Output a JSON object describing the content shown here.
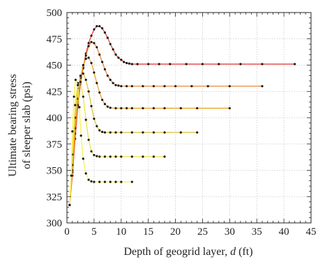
{
  "chart_data": {
    "type": "line",
    "title": "",
    "xlabel_prefix": "Depth of geogrid layer, ",
    "xlabel_var": "d",
    "xlabel_unit": " (ft)",
    "ylabel_line1": "Ultimate bearing stress",
    "ylabel_line2": "of sleeper slab (psi)",
    "xlim": [
      0,
      45
    ],
    "ylim": [
      300,
      500
    ],
    "xticks": [
      0,
      5,
      10,
      15,
      20,
      25,
      30,
      35,
      40,
      45
    ],
    "yticks": [
      300,
      325,
      350,
      375,
      400,
      425,
      450,
      475,
      500
    ],
    "grid": true,
    "legend": "none",
    "series": [
      {
        "color": "#e8322a",
        "points": [
          [
            0.5,
            317
          ],
          [
            1,
            345
          ],
          [
            1.5,
            380
          ],
          [
            2,
            410
          ],
          [
            2.5,
            432
          ],
          [
            3,
            448
          ],
          [
            3.5,
            461
          ],
          [
            4,
            471
          ],
          [
            4.5,
            478
          ],
          [
            5,
            484
          ],
          [
            5.5,
            487
          ],
          [
            6,
            487
          ],
          [
            6.5,
            485
          ],
          [
            7,
            481
          ],
          [
            7.5,
            476
          ],
          [
            8,
            470
          ],
          [
            8.5,
            465
          ],
          [
            9,
            460
          ],
          [
            9.5,
            457
          ],
          [
            10,
            455
          ],
          [
            10.5,
            453
          ],
          [
            11,
            452
          ],
          [
            11.5,
            451.5
          ],
          [
            12,
            451
          ],
          [
            13,
            451
          ],
          [
            15,
            451
          ],
          [
            17,
            451
          ],
          [
            19,
            451
          ],
          [
            22,
            451
          ],
          [
            25,
            451
          ],
          [
            28,
            451
          ],
          [
            32,
            451
          ],
          [
            36,
            451
          ],
          [
            42,
            451
          ]
        ]
      },
      {
        "color": "#ee7a1e",
        "points": [
          [
            0.5,
            317
          ],
          [
            1,
            348
          ],
          [
            1.5,
            385
          ],
          [
            2,
            412
          ],
          [
            2.5,
            432
          ],
          [
            3,
            447
          ],
          [
            3.5,
            459
          ],
          [
            4,
            468
          ],
          [
            4.5,
            472
          ],
          [
            5,
            471
          ],
          [
            5.5,
            467
          ],
          [
            6,
            460
          ],
          [
            6.5,
            453
          ],
          [
            7,
            446
          ],
          [
            7.5,
            440
          ],
          [
            8,
            436
          ],
          [
            8.5,
            433
          ],
          [
            9,
            431
          ],
          [
            9.5,
            430.5
          ],
          [
            10,
            430
          ],
          [
            11,
            430
          ],
          [
            12,
            430
          ],
          [
            14,
            430
          ],
          [
            16,
            430
          ],
          [
            18,
            430
          ],
          [
            20,
            430
          ],
          [
            23,
            430
          ],
          [
            26,
            430
          ],
          [
            30,
            430
          ],
          [
            36,
            430
          ]
        ]
      },
      {
        "color": "#e8a020",
        "points": [
          [
            0.5,
            317
          ],
          [
            1,
            350
          ],
          [
            1.5,
            390
          ],
          [
            2,
            418
          ],
          [
            2.5,
            438
          ],
          [
            3,
            450
          ],
          [
            3.5,
            456
          ],
          [
            4,
            457
          ],
          [
            4.5,
            452
          ],
          [
            5,
            443
          ],
          [
            5.5,
            433
          ],
          [
            6,
            424
          ],
          [
            6.5,
            417
          ],
          [
            7,
            413
          ],
          [
            7.5,
            410.5
          ],
          [
            8,
            409.5
          ],
          [
            9,
            409
          ],
          [
            10,
            409
          ],
          [
            11,
            409
          ],
          [
            12,
            409
          ],
          [
            14,
            409
          ],
          [
            16,
            409
          ],
          [
            18,
            409
          ],
          [
            21,
            409
          ],
          [
            24,
            409
          ],
          [
            30,
            409
          ]
        ]
      },
      {
        "color": "#d8c030",
        "points": [
          [
            0.5,
            317
          ],
          [
            1,
            355
          ],
          [
            1.5,
            400
          ],
          [
            2,
            428
          ],
          [
            2.5,
            440
          ],
          [
            3,
            442
          ],
          [
            3.5,
            436
          ],
          [
            4,
            425
          ],
          [
            4.5,
            411
          ],
          [
            5,
            399
          ],
          [
            5.5,
            392
          ],
          [
            6,
            388
          ],
          [
            6.5,
            386.5
          ],
          [
            7,
            386
          ],
          [
            8,
            386
          ],
          [
            9,
            386
          ],
          [
            10,
            386
          ],
          [
            12,
            386
          ],
          [
            14,
            386
          ],
          [
            16,
            386
          ],
          [
            18,
            386
          ],
          [
            21,
            386
          ],
          [
            24,
            386
          ]
        ]
      },
      {
        "color": "#ece040",
        "points": [
          [
            0.5,
            317
          ],
          [
            1,
            365
          ],
          [
            1.5,
            412
          ],
          [
            2,
            433
          ],
          [
            2.5,
            434
          ],
          [
            3,
            420
          ],
          [
            3.5,
            398
          ],
          [
            4,
            379
          ],
          [
            4.5,
            368
          ],
          [
            5,
            364.5
          ],
          [
            5.5,
            363.5
          ],
          [
            6,
            363
          ],
          [
            7,
            363
          ],
          [
            8,
            363
          ],
          [
            9,
            363
          ],
          [
            10,
            363
          ],
          [
            12,
            363
          ],
          [
            14,
            363
          ],
          [
            16,
            363
          ],
          [
            18,
            363
          ]
        ]
      },
      {
        "color": "#f8f04c",
        "points": [
          [
            0.5,
            317
          ],
          [
            0.8,
            345
          ],
          [
            1,
            387
          ],
          [
            1.3,
            420
          ],
          [
            1.6,
            436
          ],
          [
            2,
            431
          ],
          [
            2.3,
            410
          ],
          [
            2.6,
            383
          ],
          [
            3,
            361
          ],
          [
            3.5,
            347
          ],
          [
            4,
            341
          ],
          [
            4.5,
            339.5
          ],
          [
            5,
            339
          ],
          [
            6,
            339
          ],
          [
            7,
            339
          ],
          [
            8,
            339
          ],
          [
            9,
            339
          ],
          [
            10,
            339
          ],
          [
            12,
            339
          ]
        ]
      }
    ]
  }
}
